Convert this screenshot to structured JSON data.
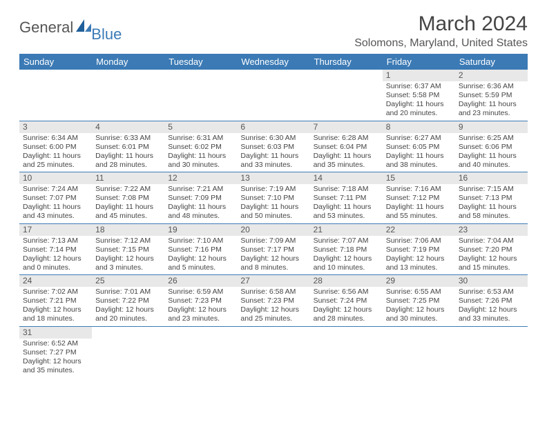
{
  "logo": {
    "main": "General",
    "sub": "Blue"
  },
  "title": "March 2024",
  "location": "Solomons, Maryland, United States",
  "colors": {
    "header_bg": "#3b7ab5",
    "header_text": "#ffffff",
    "daynum_bg": "#e8e8e8",
    "border": "#3b7ab5",
    "body_text": "#444444"
  },
  "weekdays": [
    "Sunday",
    "Monday",
    "Tuesday",
    "Wednesday",
    "Thursday",
    "Friday",
    "Saturday"
  ],
  "weeks": [
    [
      null,
      null,
      null,
      null,
      null,
      {
        "n": "1",
        "sr": "Sunrise: 6:37 AM",
        "ss": "Sunset: 5:58 PM",
        "dl": "Daylight: 11 hours and 20 minutes."
      },
      {
        "n": "2",
        "sr": "Sunrise: 6:36 AM",
        "ss": "Sunset: 5:59 PM",
        "dl": "Daylight: 11 hours and 23 minutes."
      }
    ],
    [
      {
        "n": "3",
        "sr": "Sunrise: 6:34 AM",
        "ss": "Sunset: 6:00 PM",
        "dl": "Daylight: 11 hours and 25 minutes."
      },
      {
        "n": "4",
        "sr": "Sunrise: 6:33 AM",
        "ss": "Sunset: 6:01 PM",
        "dl": "Daylight: 11 hours and 28 minutes."
      },
      {
        "n": "5",
        "sr": "Sunrise: 6:31 AM",
        "ss": "Sunset: 6:02 PM",
        "dl": "Daylight: 11 hours and 30 minutes."
      },
      {
        "n": "6",
        "sr": "Sunrise: 6:30 AM",
        "ss": "Sunset: 6:03 PM",
        "dl": "Daylight: 11 hours and 33 minutes."
      },
      {
        "n": "7",
        "sr": "Sunrise: 6:28 AM",
        "ss": "Sunset: 6:04 PM",
        "dl": "Daylight: 11 hours and 35 minutes."
      },
      {
        "n": "8",
        "sr": "Sunrise: 6:27 AM",
        "ss": "Sunset: 6:05 PM",
        "dl": "Daylight: 11 hours and 38 minutes."
      },
      {
        "n": "9",
        "sr": "Sunrise: 6:25 AM",
        "ss": "Sunset: 6:06 PM",
        "dl": "Daylight: 11 hours and 40 minutes."
      }
    ],
    [
      {
        "n": "10",
        "sr": "Sunrise: 7:24 AM",
        "ss": "Sunset: 7:07 PM",
        "dl": "Daylight: 11 hours and 43 minutes."
      },
      {
        "n": "11",
        "sr": "Sunrise: 7:22 AM",
        "ss": "Sunset: 7:08 PM",
        "dl": "Daylight: 11 hours and 45 minutes."
      },
      {
        "n": "12",
        "sr": "Sunrise: 7:21 AM",
        "ss": "Sunset: 7:09 PM",
        "dl": "Daylight: 11 hours and 48 minutes."
      },
      {
        "n": "13",
        "sr": "Sunrise: 7:19 AM",
        "ss": "Sunset: 7:10 PM",
        "dl": "Daylight: 11 hours and 50 minutes."
      },
      {
        "n": "14",
        "sr": "Sunrise: 7:18 AM",
        "ss": "Sunset: 7:11 PM",
        "dl": "Daylight: 11 hours and 53 minutes."
      },
      {
        "n": "15",
        "sr": "Sunrise: 7:16 AM",
        "ss": "Sunset: 7:12 PM",
        "dl": "Daylight: 11 hours and 55 minutes."
      },
      {
        "n": "16",
        "sr": "Sunrise: 7:15 AM",
        "ss": "Sunset: 7:13 PM",
        "dl": "Daylight: 11 hours and 58 minutes."
      }
    ],
    [
      {
        "n": "17",
        "sr": "Sunrise: 7:13 AM",
        "ss": "Sunset: 7:14 PM",
        "dl": "Daylight: 12 hours and 0 minutes."
      },
      {
        "n": "18",
        "sr": "Sunrise: 7:12 AM",
        "ss": "Sunset: 7:15 PM",
        "dl": "Daylight: 12 hours and 3 minutes."
      },
      {
        "n": "19",
        "sr": "Sunrise: 7:10 AM",
        "ss": "Sunset: 7:16 PM",
        "dl": "Daylight: 12 hours and 5 minutes."
      },
      {
        "n": "20",
        "sr": "Sunrise: 7:09 AM",
        "ss": "Sunset: 7:17 PM",
        "dl": "Daylight: 12 hours and 8 minutes."
      },
      {
        "n": "21",
        "sr": "Sunrise: 7:07 AM",
        "ss": "Sunset: 7:18 PM",
        "dl": "Daylight: 12 hours and 10 minutes."
      },
      {
        "n": "22",
        "sr": "Sunrise: 7:06 AM",
        "ss": "Sunset: 7:19 PM",
        "dl": "Daylight: 12 hours and 13 minutes."
      },
      {
        "n": "23",
        "sr": "Sunrise: 7:04 AM",
        "ss": "Sunset: 7:20 PM",
        "dl": "Daylight: 12 hours and 15 minutes."
      }
    ],
    [
      {
        "n": "24",
        "sr": "Sunrise: 7:02 AM",
        "ss": "Sunset: 7:21 PM",
        "dl": "Daylight: 12 hours and 18 minutes."
      },
      {
        "n": "25",
        "sr": "Sunrise: 7:01 AM",
        "ss": "Sunset: 7:22 PM",
        "dl": "Daylight: 12 hours and 20 minutes."
      },
      {
        "n": "26",
        "sr": "Sunrise: 6:59 AM",
        "ss": "Sunset: 7:23 PM",
        "dl": "Daylight: 12 hours and 23 minutes."
      },
      {
        "n": "27",
        "sr": "Sunrise: 6:58 AM",
        "ss": "Sunset: 7:23 PM",
        "dl": "Daylight: 12 hours and 25 minutes."
      },
      {
        "n": "28",
        "sr": "Sunrise: 6:56 AM",
        "ss": "Sunset: 7:24 PM",
        "dl": "Daylight: 12 hours and 28 minutes."
      },
      {
        "n": "29",
        "sr": "Sunrise: 6:55 AM",
        "ss": "Sunset: 7:25 PM",
        "dl": "Daylight: 12 hours and 30 minutes."
      },
      {
        "n": "30",
        "sr": "Sunrise: 6:53 AM",
        "ss": "Sunset: 7:26 PM",
        "dl": "Daylight: 12 hours and 33 minutes."
      }
    ],
    [
      {
        "n": "31",
        "sr": "Sunrise: 6:52 AM",
        "ss": "Sunset: 7:27 PM",
        "dl": "Daylight: 12 hours and 35 minutes."
      },
      null,
      null,
      null,
      null,
      null,
      null
    ]
  ]
}
